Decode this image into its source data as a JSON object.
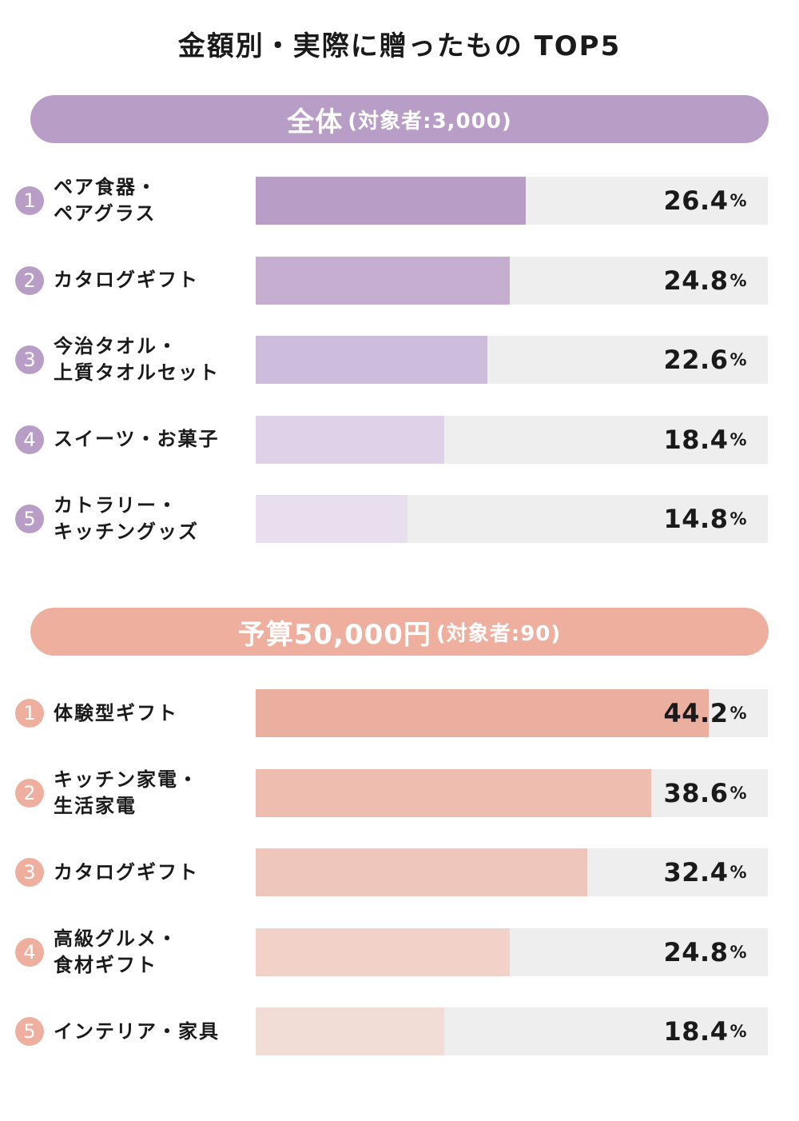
{
  "title": "金額別・実際に贈ったもの TOP5",
  "chart_data": [
    {
      "type": "bar",
      "header": "全体",
      "subheader": "(対象者:3,000)",
      "color": "#b89ec6",
      "categories": [
        "ペア食器・\nペアグラス",
        "カタログギフト",
        "今治タオル・\n上質タオルセット",
        "スイーツ・お菓子",
        "カトラリー・\nキッチングッズ"
      ],
      "ranks": [
        "1",
        "2",
        "3",
        "4",
        "5"
      ],
      "values": [
        26.4,
        24.8,
        22.6,
        18.4,
        14.8
      ],
      "value_labels": [
        "26.4",
        "24.8",
        "22.6",
        "18.4",
        "14.8"
      ],
      "unit": "%",
      "bar_colors": [
        "#b89ec6",
        "#c5aed0",
        "#cdbcdb",
        "#dfd1e7",
        "#e8deee"
      ]
    },
    {
      "type": "bar",
      "header": "予算50,000円",
      "subheader": "(対象者:90)",
      "color": "#eeaf9f",
      "categories": [
        "体験型ギフト",
        "キッチン家電・\n生活家電",
        "カタログギフト",
        "高級グルメ・\n食材ギフト",
        "インテリア・家具"
      ],
      "ranks": [
        "1",
        "2",
        "3",
        "4",
        "5"
      ],
      "values": [
        44.2,
        38.6,
        32.4,
        24.8,
        18.4
      ],
      "value_labels": [
        "44.2",
        "38.6",
        "32.4",
        "24.8",
        "18.4"
      ],
      "unit": "%",
      "bar_colors": [
        "#eaaf9f",
        "#efbdb0",
        "#efc6bb",
        "#f1d1c8",
        "#f2ddd6"
      ]
    }
  ]
}
